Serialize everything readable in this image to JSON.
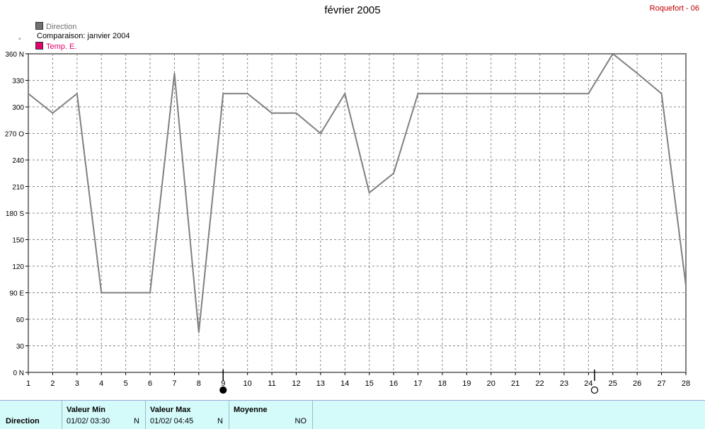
{
  "header": {
    "title": "février 2005",
    "station": "Roquefort - 06",
    "degree_symbol": "°"
  },
  "legend": {
    "direction": "Direction",
    "comparison": "Comparaison: janvier 2004",
    "temp": "Temp. E."
  },
  "colors": {
    "series_direction": "#808080",
    "temp_swatch": "#e0006c",
    "direction_swatch": "#707070",
    "stats_bg": "#d5fafa"
  },
  "chart_data": {
    "type": "line",
    "x": [
      1,
      2,
      3,
      4,
      5,
      6,
      7,
      8,
      9,
      10,
      11,
      12,
      13,
      14,
      15,
      16,
      17,
      18,
      19,
      20,
      21,
      22,
      23,
      24,
      25,
      26,
      27,
      28
    ],
    "series": [
      {
        "name": "Direction",
        "values": [
          315,
          293,
          315,
          90,
          90,
          90,
          338,
          45,
          315,
          315,
          293,
          293,
          270,
          315,
          203,
          225,
          315,
          315,
          315,
          315,
          315,
          315,
          315,
          315,
          360,
          338,
          315,
          98
        ]
      }
    ],
    "ylim": [
      0,
      360
    ],
    "xlim": [
      1,
      28
    ],
    "yticks": [
      0,
      30,
      60,
      90,
      120,
      150,
      180,
      210,
      240,
      270,
      300,
      330,
      360
    ],
    "ytick_labels": [
      "0 N",
      "30",
      "60",
      "90 E",
      "120",
      "150",
      "180 S",
      "210",
      "240",
      "270 O",
      "300",
      "330",
      "360 N"
    ],
    "xticks": [
      "1",
      "2",
      "3",
      "4",
      "5",
      "6",
      "7",
      "8",
      "9",
      "10",
      "11",
      "12",
      "13",
      "14",
      "15",
      "16",
      "17",
      "18",
      "19",
      "20",
      "21",
      "22",
      "23",
      "24",
      "25",
      "26",
      "27",
      "28"
    ],
    "grid": true,
    "markers": [
      {
        "x": 9,
        "symbol": "filled-circle"
      },
      {
        "x": 24.25,
        "symbol": "open-circle"
      }
    ]
  },
  "stats": {
    "row_label": "Direction",
    "min": {
      "header": "Valeur Min",
      "value": "01/02/  03:30",
      "unit": "N"
    },
    "max": {
      "header": "Valeur Max",
      "value": "01/02/  04:45",
      "unit": "N"
    },
    "mean": {
      "header": "Moyenne",
      "unit": "NO"
    }
  }
}
